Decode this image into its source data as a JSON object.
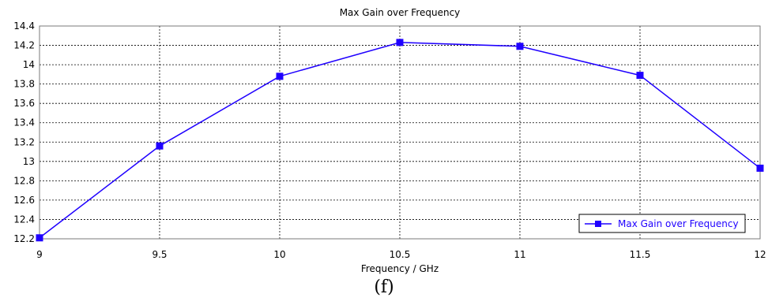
{
  "caption": "(f)",
  "chart_data": {
    "type": "line",
    "title": "Max Gain over Frequency",
    "xlabel": "Frequency / GHz",
    "ylabel": "",
    "x": [
      9,
      9.5,
      10,
      10.5,
      11,
      11.5,
      12
    ],
    "series": [
      {
        "name": "Max Gain over Frequency",
        "values": [
          12.21,
          13.16,
          13.88,
          14.23,
          14.19,
          13.89,
          12.93
        ],
        "color": "#1f00ff"
      }
    ],
    "xlim": [
      9,
      12
    ],
    "ylim": [
      12.2,
      14.4
    ],
    "xticks": [
      9,
      9.5,
      10,
      10.5,
      11,
      11.5,
      12
    ],
    "xtick_labels": [
      "9",
      "9.5",
      "10",
      "10.5",
      "11",
      "11.5",
      "12"
    ],
    "yticks": [
      12.2,
      12.4,
      12.6,
      12.8,
      13,
      13.2,
      13.4,
      13.6,
      13.8,
      14,
      14.2,
      14.4
    ],
    "ytick_labels": [
      "12.2",
      "12.4",
      "12.6",
      "12.8",
      "13",
      "13.2",
      "13.4",
      "13.6",
      "13.8",
      "14",
      "14.2",
      "14.4"
    ],
    "grid": true,
    "legend_position": "bottom-right"
  }
}
